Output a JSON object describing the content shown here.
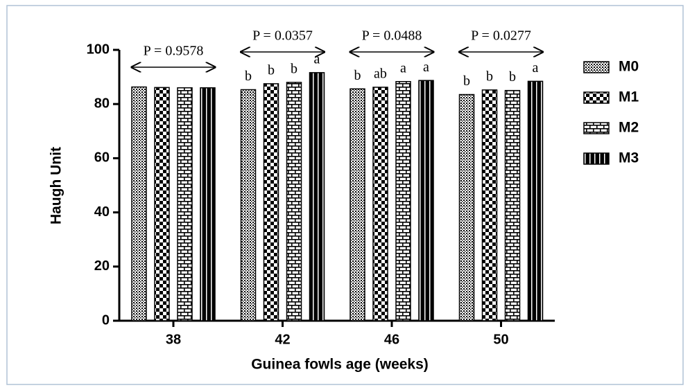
{
  "chart_data": {
    "type": "bar",
    "xlabel": "Guinea fowls age (weeks)",
    "ylabel": "Haugh Unit",
    "categories": [
      "38",
      "42",
      "46",
      "50"
    ],
    "series": [
      {
        "name": "M0",
        "color": "#000000",
        "pattern": "dots",
        "values": [
          86.3,
          85.3,
          85.6,
          83.5
        ],
        "letters": [
          null,
          "b",
          "b",
          "b"
        ]
      },
      {
        "name": "M1",
        "color": "#000000",
        "pattern": "checker",
        "values": [
          86.1,
          87.5,
          86.2,
          85.2
        ],
        "letters": [
          null,
          "b",
          "ab",
          "b"
        ]
      },
      {
        "name": "M2",
        "color": "#000000",
        "pattern": "brick",
        "values": [
          86.0,
          88.0,
          88.3,
          85.0
        ],
        "letters": [
          null,
          "b",
          "a",
          "b"
        ]
      },
      {
        "name": "M3",
        "color": "#000000",
        "pattern": "vertical",
        "values": [
          86.0,
          91.6,
          88.7,
          88.4
        ],
        "letters": [
          null,
          "a",
          "a",
          "a"
        ]
      }
    ],
    "annotations": [
      "P = 0.9578",
      "P = 0.0357",
      "P = 0.0488",
      "P = 0.0277"
    ],
    "ylim": [
      0,
      100
    ],
    "yticks": [
      0,
      20,
      40,
      60,
      80,
      100
    ],
    "grid": false,
    "legend": "right"
  }
}
